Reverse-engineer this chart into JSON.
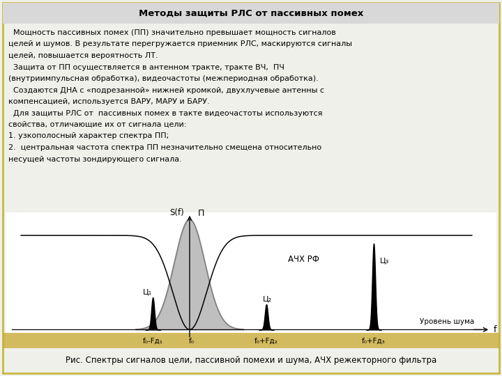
{
  "title": "Методы защиты РЛС от пассивных помех",
  "body_lines": [
    "  Мощность пассивных помех (ПП) значительно превышает мощность сигналов",
    "целей и шумов. В результате перегружается приемник РЛС, маскируются сигналы",
    "целей, повышается вероятность ЛТ.",
    "  Защита от ПП осуществляется в антенном тракте, тракте ВЧ,  ПЧ",
    "(внутриимпульсная обработка), видеочастоты (межпериодная обработка).",
    "  Создаются ДНА с «подрезанной» нижней кромкой, двухлучевые антенны с",
    "компенсацией, используется ВАРУ, МАРУ и БАРУ.",
    "  Для защиты РЛС от  пассивных помех в такте видеочастоты используются",
    "свойства, отличающие их от сигнала цели:",
    "1. узкополосный характер спектра ПП;",
    "2.  центральная частота спектра ПП незначительно смещена относительно",
    "несущей частоты зондирующего сигнала."
  ],
  "caption": "Рис. Спектры сигналов цели, пассивной помехи и шума, АЧХ режекторного фильтра",
  "bg_color": "#f0f0eb",
  "border_color": "#c8b840",
  "title_bg": "#d8d8d8",
  "white_bg": "#ffffff",
  "gold_band": "#c8a830"
}
